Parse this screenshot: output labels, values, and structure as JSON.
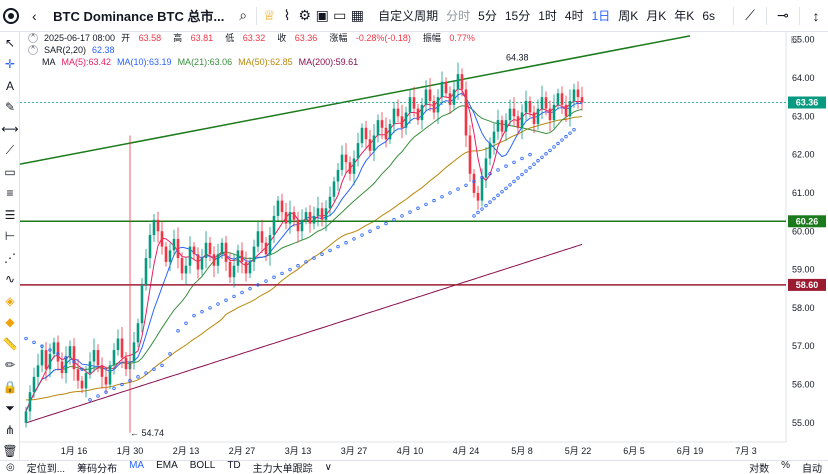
{
  "toolbar": {
    "title": "BTC Dominance BTC 总市...",
    "period_label": "自定义周期",
    "timeframes": [
      {
        "label": "分时",
        "muted": true
      },
      {
        "label": "5分",
        "muted": false
      },
      {
        "label": "15分",
        "muted": false
      },
      {
        "label": "1时",
        "muted": false
      },
      {
        "label": "4时",
        "muted": false
      },
      {
        "label": "1日",
        "active": true
      },
      {
        "label": "周K",
        "muted": false
      },
      {
        "label": "月K",
        "muted": false
      },
      {
        "label": "年K",
        "muted": false
      }
    ],
    "speed_label": "6s"
  },
  "legend": {
    "date": "2025-06-17 08:00",
    "open_label": "开",
    "open": "63.58",
    "high_label": "高",
    "high": "63.81",
    "low_label": "低",
    "low": "63.32",
    "close_label": "收",
    "close": "63.36",
    "change_label": "涨幅",
    "change": "-0.28%(-0.18)",
    "amp_label": "振幅",
    "amp": "0.77%",
    "sar_label": "SAR(2,20)",
    "sar_value": "62.38",
    "ma_label": "MA",
    "ma5": "MA(5):63.42",
    "ma10": "MA(10):63.19",
    "ma21": "MA(21):63.06",
    "ma50": "MA(50):62.85",
    "ma200": "MA(200):59.61"
  },
  "bottom": {
    "items": [
      "定位到...",
      "筹码分布",
      "MA",
      "EMA",
      "BOLL",
      "TD",
      "主力大单跟踪"
    ],
    "active_index": 2,
    "right_items": [
      "对数",
      "%",
      "自动"
    ]
  },
  "colors": {
    "up": "#089981",
    "down": "#f23645",
    "green_line": "#1b7a1b",
    "red_line": "#9b1b30",
    "price_tag": "#089981"
  },
  "chart_data": {
    "type": "candlestick",
    "ylim": [
      54.5,
      65.2
    ],
    "y_ticks": [
      55.0,
      56.0,
      57.0,
      58.0,
      59.0,
      60.0,
      61.0,
      62.0,
      63.0,
      64.0,
      65.0
    ],
    "x_ticks": [
      "1月 16",
      "1月 30",
      "2月 13",
      "2月 27",
      "3月 13",
      "3月 27",
      "4月 10",
      "4月 24",
      "5月 8",
      "5月 22",
      "6月 5",
      "6月 19",
      "7月 3"
    ],
    "start_date": "2025-01-04",
    "last_price": "63.36",
    "horizontal_lines": [
      {
        "value": 60.26,
        "label": "60.26",
        "color": "#1b7a1b"
      },
      {
        "value": 58.6,
        "label": "58.60",
        "color": "#9b1b30"
      }
    ],
    "trendline": {
      "from": {
        "date": "2025-01-04",
        "value": 61.75
      },
      "to": {
        "date": "2025-06-19",
        "value": 65.1
      }
    },
    "annotations": [
      {
        "text": "64.38",
        "date": "2025-05-04",
        "value": 64.38
      },
      {
        "text": "54.74",
        "date": "2025-01-30",
        "value": 54.74
      }
    ],
    "close": [
      55.3,
      55.8,
      56.2,
      56.5,
      56.9,
      56.4,
      56.8,
      57.1,
      56.6,
      56.3,
      56.7,
      57.0,
      56.4,
      56.1,
      55.9,
      56.3,
      56.6,
      56.9,
      56.5,
      56.2,
      56.0,
      56.5,
      56.9,
      57.2,
      56.7,
      56.4,
      56.6,
      57.1,
      57.6,
      58.6,
      59.3,
      59.9,
      60.3,
      60.0,
      59.6,
      59.2,
      59.5,
      59.8,
      59.3,
      58.9,
      59.1,
      59.6,
      59.4,
      59.0,
      59.3,
      59.7,
      59.4,
      59.1,
      59.4,
      59.7,
      59.2,
      58.8,
      59.1,
      59.5,
      59.2,
      58.9,
      59.2,
      59.6,
      60.0,
      59.7,
      59.4,
      59.9,
      60.4,
      60.8,
      60.5,
      60.2,
      60.5,
      60.3,
      60.0,
      60.3,
      60.5,
      60.2,
      60.4,
      60.6,
      60.3,
      60.6,
      60.9,
      61.3,
      61.6,
      62.0,
      61.8,
      61.5,
      61.9,
      62.3,
      62.7,
      62.4,
      62.1,
      62.5,
      62.9,
      62.7,
      62.4,
      62.8,
      63.2,
      63.0,
      62.7,
      63.1,
      63.5,
      63.2,
      62.9,
      63.3,
      63.7,
      63.4,
      63.1,
      63.5,
      63.9,
      63.6,
      63.3,
      63.7,
      64.1,
      63.7,
      62.5,
      61.5,
      61.0,
      60.8,
      61.4,
      61.9,
      62.3,
      62.6,
      62.9,
      62.6,
      62.9,
      63.2,
      63.0,
      62.7,
      63.1,
      63.4,
      63.1,
      62.8,
      63.2,
      63.5,
      63.2,
      62.9,
      63.3,
      63.6,
      63.3,
      63.0,
      63.4,
      63.7,
      63.5,
      63.36
    ],
    "sar_before": [
      57.2,
      57.1,
      57.0,
      56.9,
      56.8,
      56.7,
      56.6,
      56.4,
      55.6,
      55.7,
      55.8,
      55.9,
      56.0,
      56.1,
      56.2,
      56.3,
      56.4,
      56.5,
      56.8,
      57.4,
      57.6,
      57.8,
      57.9,
      58.0,
      58.1,
      58.2,
      58.3,
      58.4,
      58.5,
      58.6,
      58.7,
      58.8,
      58.9,
      59.0,
      59.1,
      59.2,
      59.3,
      59.4,
      59.5,
      59.6,
      59.7,
      59.8,
      59.9,
      60.0,
      60.1,
      60.2,
      60.3,
      60.4,
      60.5,
      60.6,
      60.7,
      60.8,
      60.9,
      61.0,
      61.1,
      61.2,
      61.3,
      61.4,
      61.5,
      61.6,
      61.7,
      61.8,
      61.9,
      62.0
    ]
  }
}
